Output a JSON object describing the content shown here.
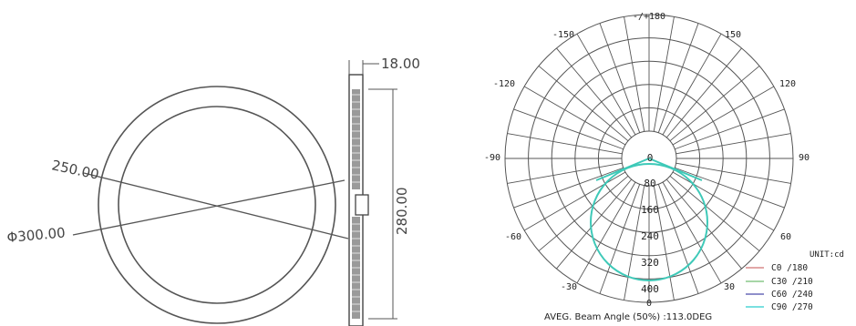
{
  "drawing": {
    "dimensions": {
      "thickness": "18.00",
      "height": "280.00",
      "inner_diameter": "250.00",
      "outer_diameter": "Φ300.00"
    }
  },
  "polar": {
    "angle_labels": {
      "top": "-/+180",
      "n150": "-150",
      "p150": "150",
      "n120": "-120",
      "p120": "120",
      "n90": "-90",
      "p90": "90",
      "n60": "-60",
      "p60": "60",
      "n30": "-30",
      "p30": "30",
      "bottom": "0"
    },
    "radial_labels": [
      "0",
      "80",
      "160",
      "240",
      "320",
      "400"
    ],
    "unit": "UNIT:cd",
    "legend": [
      {
        "label": "C0  /180",
        "color": "#d98a8a"
      },
      {
        "label": "C30 /210",
        "color": "#8ac98a"
      },
      {
        "label": "C60 /240",
        "color": "#6a6ab8"
      },
      {
        "label": "C90 /270",
        "color": "#4fd6d6"
      }
    ],
    "beam_angle": "AVEG. Beam Angle (50%) :113.0DEG",
    "curve_color": "#3ec9b8"
  }
}
